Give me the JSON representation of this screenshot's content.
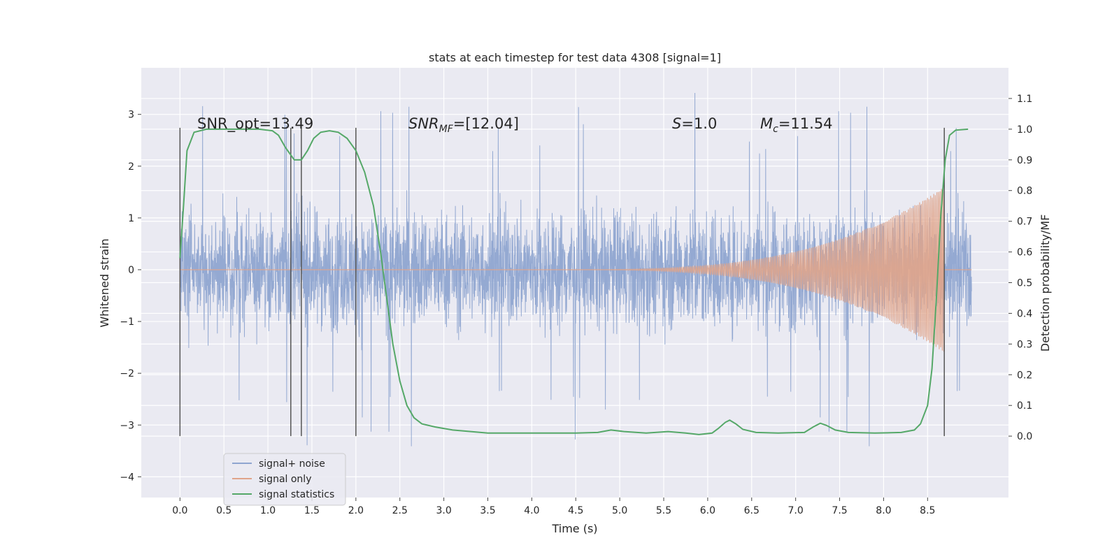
{
  "chart_data": {
    "type": "line",
    "title": "stats at each timestep for test data 4308 [signal=1]",
    "xlabel": "Time (s)",
    "ylabel": "Whitened strain",
    "y2label": "Detection probability/MF",
    "xlim": [
      -0.44,
      9.42
    ],
    "ylim": [
      -4.4,
      3.9
    ],
    "y2lim": [
      -0.2,
      1.2
    ],
    "x_ticks": [
      0.0,
      0.5,
      1.0,
      1.5,
      2.0,
      2.5,
      3.0,
      3.5,
      4.0,
      4.5,
      5.0,
      5.5,
      6.0,
      6.5,
      7.0,
      7.5,
      8.0,
      8.5
    ],
    "x_tick_labels": [
      "0.0",
      "0.5",
      "1.0",
      "1.5",
      "2.0",
      "2.5",
      "3.0",
      "3.5",
      "4.0",
      "4.5",
      "5.0",
      "5.5",
      "6.0",
      "6.5",
      "7.0",
      "7.5",
      "8.0",
      "8.5"
    ],
    "y_ticks": [
      3,
      2,
      1,
      0,
      -1,
      -2,
      -3,
      -4
    ],
    "y_tick_labels": [
      "3",
      "2",
      "1",
      "0",
      "−1",
      "−2",
      "−3",
      "−4"
    ],
    "y2_ticks": [
      1.1,
      1.0,
      0.9,
      0.8,
      0.7,
      0.6,
      0.5,
      0.4,
      0.3,
      0.2,
      0.1,
      0.0
    ],
    "y2_tick_labels": [
      "1.1",
      "1.0",
      "0.9",
      "0.8",
      "0.7",
      "0.6",
      "0.5",
      "0.4",
      "0.3",
      "0.2",
      "0.1",
      "0.0"
    ],
    "grid": true,
    "legend_position": "bottom-left",
    "annotations": {
      "snr_opt": "SNR_opt=13.49",
      "snr_mf_main": "SNR",
      "snr_mf_sub": "MF",
      "snr_mf_value": "=[12.04]",
      "s_main": "S",
      "s_value": "=1.0",
      "mc_main": "M",
      "mc_sub": "c",
      "mc_value": "=11.54"
    },
    "vertical_markers": [
      0.0,
      1.26,
      1.38,
      2.0,
      8.69
    ],
    "series": [
      {
        "name": "signal+ noise",
        "color": "#8fa5d0",
        "axis": "left",
        "description_note": "noise around 0 with amplitude ~1.5, occasional spikes up to ~3.5 and down to ~-4, x from 0 to 9"
      },
      {
        "name": "signal only",
        "color": "#e0a48a",
        "axis": "left",
        "chirp": {
          "start": 4.2,
          "end": 8.69,
          "peak_amplitude": 1.6,
          "after_value": 0.0
        }
      },
      {
        "name": "signal statistics",
        "color": "#55a868",
        "axis": "right",
        "points": [
          [
            0.0,
            0.58
          ],
          [
            0.04,
            0.75
          ],
          [
            0.08,
            0.93
          ],
          [
            0.16,
            0.99
          ],
          [
            0.3,
            1.0
          ],
          [
            0.6,
            1.0
          ],
          [
            0.9,
            1.0
          ],
          [
            1.05,
            0.995
          ],
          [
            1.12,
            0.98
          ],
          [
            1.2,
            0.94
          ],
          [
            1.25,
            0.92
          ],
          [
            1.3,
            0.9
          ],
          [
            1.38,
            0.9
          ],
          [
            1.45,
            0.93
          ],
          [
            1.52,
            0.97
          ],
          [
            1.6,
            0.99
          ],
          [
            1.7,
            0.995
          ],
          [
            1.8,
            0.99
          ],
          [
            1.9,
            0.97
          ],
          [
            2.0,
            0.93
          ],
          [
            2.1,
            0.86
          ],
          [
            2.2,
            0.75
          ],
          [
            2.28,
            0.6
          ],
          [
            2.35,
            0.45
          ],
          [
            2.42,
            0.3
          ],
          [
            2.5,
            0.18
          ],
          [
            2.58,
            0.1
          ],
          [
            2.66,
            0.06
          ],
          [
            2.75,
            0.04
          ],
          [
            2.9,
            0.03
          ],
          [
            3.1,
            0.02
          ],
          [
            3.5,
            0.01
          ],
          [
            4.0,
            0.01
          ],
          [
            4.5,
            0.01
          ],
          [
            4.75,
            0.012
          ],
          [
            4.9,
            0.02
          ],
          [
            5.05,
            0.015
          ],
          [
            5.3,
            0.01
          ],
          [
            5.55,
            0.015
          ],
          [
            5.75,
            0.01
          ],
          [
            5.9,
            0.005
          ],
          [
            6.05,
            0.01
          ],
          [
            6.12,
            0.025
          ],
          [
            6.2,
            0.045
          ],
          [
            6.25,
            0.052
          ],
          [
            6.32,
            0.04
          ],
          [
            6.4,
            0.022
          ],
          [
            6.55,
            0.012
          ],
          [
            6.8,
            0.01
          ],
          [
            7.1,
            0.012
          ],
          [
            7.2,
            0.03
          ],
          [
            7.28,
            0.042
          ],
          [
            7.35,
            0.035
          ],
          [
            7.45,
            0.02
          ],
          [
            7.6,
            0.012
          ],
          [
            7.9,
            0.01
          ],
          [
            8.2,
            0.012
          ],
          [
            8.35,
            0.02
          ],
          [
            8.42,
            0.04
          ],
          [
            8.5,
            0.1
          ],
          [
            8.55,
            0.22
          ],
          [
            8.6,
            0.45
          ],
          [
            8.65,
            0.72
          ],
          [
            8.7,
            0.9
          ],
          [
            8.75,
            0.98
          ],
          [
            8.82,
            0.997
          ],
          [
            8.96,
            1.0
          ]
        ]
      }
    ]
  }
}
